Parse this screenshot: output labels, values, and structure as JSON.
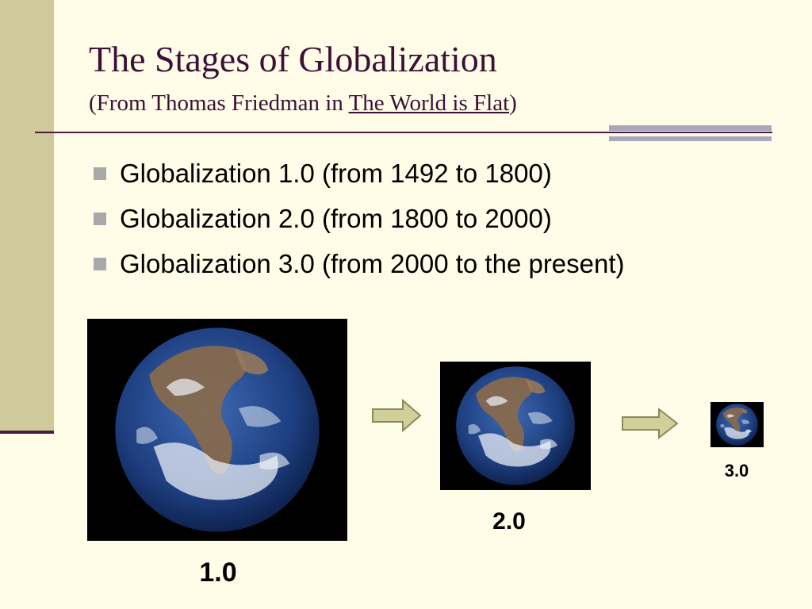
{
  "slide": {
    "title": "The Stages of Globalization",
    "subtitle_prefix": "(From Thomas Friedman in ",
    "subtitle_book": "The World is Flat",
    "subtitle_suffix": ")"
  },
  "bullets": [
    "Globalization 1.0 (from 1492 to 1800)",
    "Globalization 2.0 (from 1800 to 2000)",
    "Globalization 3.0 (from 2000 to the present)"
  ],
  "stages": [
    {
      "label": "1.0",
      "icon": "earth-globe-icon"
    },
    {
      "label": "2.0",
      "icon": "earth-globe-icon"
    },
    {
      "label": "3.0",
      "icon": "earth-globe-icon"
    }
  ],
  "arrows": [
    "right-arrow-icon",
    "right-arrow-icon"
  ],
  "colors": {
    "background": "#FFFDE7",
    "sidebar": "#CFCA9A",
    "title": "#3D1036",
    "rule": "#4A1A3F",
    "accent_bars": "#A8A8BC",
    "bullet_marker": "#A9A9A9",
    "arrow_fill": "#D2D09A",
    "arrow_stroke": "#8A8A5A",
    "ocean": "#1E3F80"
  }
}
